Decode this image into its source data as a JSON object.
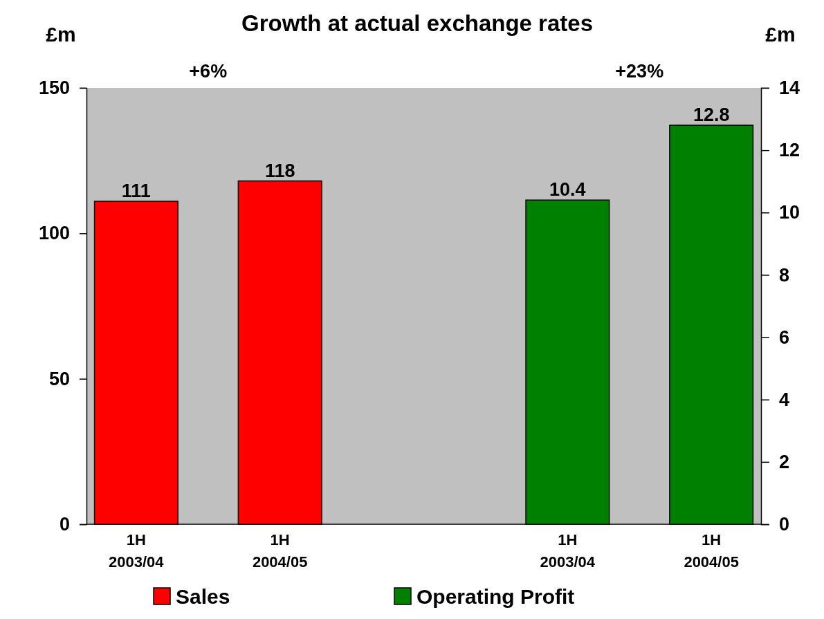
{
  "chart_data": {
    "type": "bar",
    "title": "Growth at actual exchange rates",
    "ylabel": "£m",
    "y2label": "£m",
    "categories": [
      "1H 2003/04",
      "1H 2004/05",
      null,
      "1H 2003/04",
      "1H 2004/05"
    ],
    "series": [
      {
        "name": "Sales",
        "color": "#ff0000",
        "values": [
          111,
          118,
          null,
          null,
          null
        ]
      },
      {
        "name": "Operating Profit",
        "color": "#008000",
        "axis": "y2",
        "values": [
          null,
          null,
          null,
          10.4,
          12.8
        ]
      }
    ],
    "ylim": [
      0,
      150
    ],
    "yticks": [
      0,
      50,
      100,
      150
    ],
    "y2lim": [
      0,
      14
    ],
    "y2ticks": [
      0,
      2,
      4,
      6,
      8,
      10,
      12,
      14
    ],
    "annotations": [
      "+6%",
      "+23%"
    ],
    "data_labels": true,
    "legend": "bottom",
    "grid": false
  }
}
